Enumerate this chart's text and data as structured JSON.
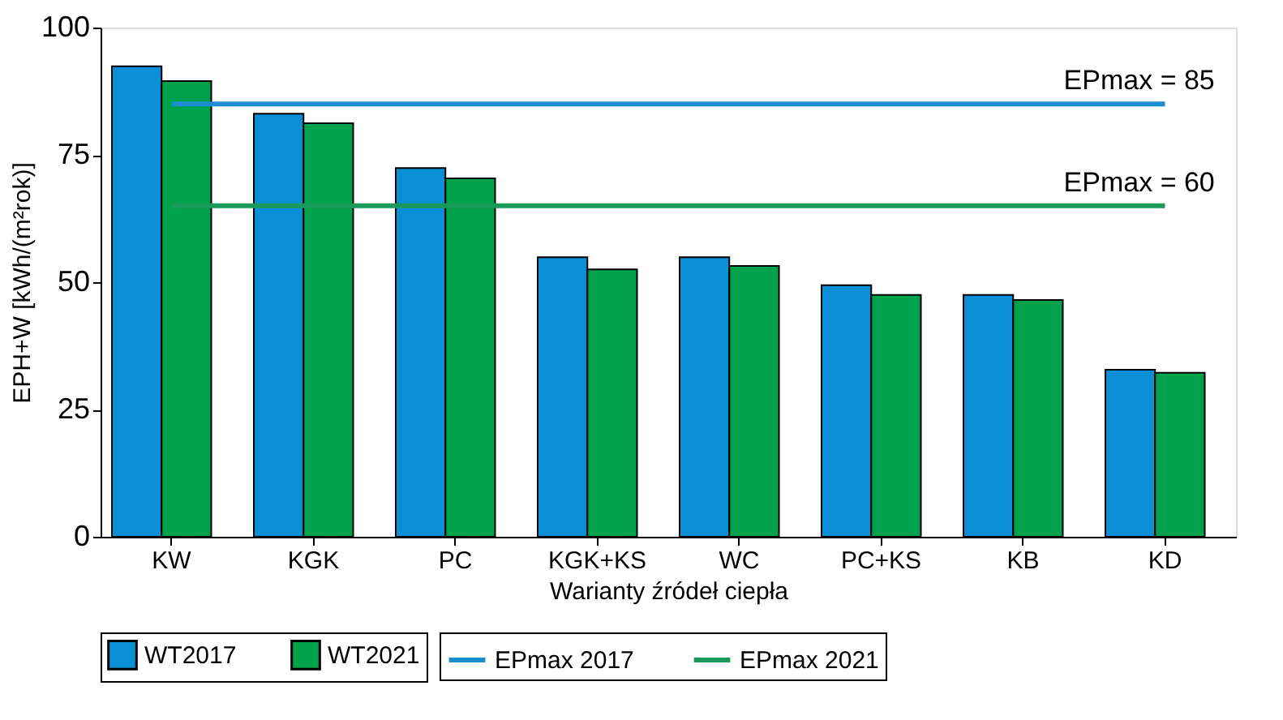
{
  "chart_data": {
    "type": "bar",
    "xlabel": "Warianty źródeł ciepła",
    "ylabel": "EPH+W [kWh/(m²rok)]",
    "categories": [
      "KW",
      "KGK",
      "PC",
      "KGK+KS",
      "WC",
      "PC+KS",
      "KB",
      "KD"
    ],
    "series": [
      {
        "name": "WT2017",
        "color": "#0a8fd6",
        "values": [
          92.4,
          83.1,
          72.4,
          54.9,
          54.9,
          49.4,
          47.5,
          32.8
        ]
      },
      {
        "name": "WT2021",
        "color": "#00a14b",
        "values": [
          89.5,
          81.2,
          70.4,
          52.5,
          53.2,
          47.5,
          46.5,
          32.2
        ]
      },
      {
        "name": "EPmax 2017",
        "type": "line",
        "color": "#1a8ecf",
        "values": [
          85,
          85,
          85,
          85,
          85,
          85,
          85,
          85
        ]
      },
      {
        "name": "EPmax 2021",
        "type": "line",
        "color": "#1a9a5a",
        "values": [
          65,
          65,
          65,
          65,
          65,
          65,
          65,
          65
        ]
      }
    ],
    "annotations": [
      {
        "text": "EPmax = 85",
        "x": "KD",
        "y": 85
      },
      {
        "text": "EPmax = 60",
        "x": "KD",
        "y": 65
      }
    ],
    "ylim": [
      0,
      100
    ],
    "yticks": [
      0,
      25,
      50,
      75,
      100
    ],
    "grid": false,
    "legend": "bottom",
    "marker": "none",
    "line_style": "solid"
  }
}
